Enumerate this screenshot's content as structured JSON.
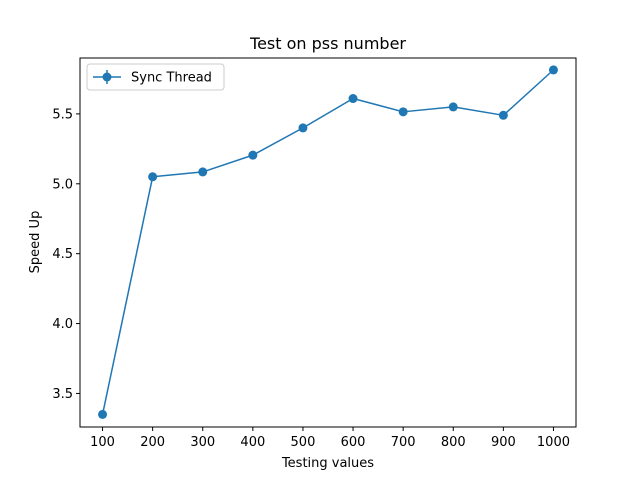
{
  "chart_data": {
    "type": "line",
    "title": "Test on pss number",
    "xlabel": "Testing values",
    "ylabel": "Speed Up",
    "x": [
      100,
      200,
      300,
      400,
      500,
      600,
      700,
      800,
      900,
      1000
    ],
    "xticks": [
      "100",
      "200",
      "300",
      "400",
      "500",
      "600",
      "700",
      "800",
      "900",
      "1000"
    ],
    "yticks": [
      "3.5",
      "4.0",
      "4.5",
      "5.0",
      "5.5"
    ],
    "xlim": [
      55,
      1045
    ],
    "ylim": [
      3.26,
      5.9
    ],
    "grid": false,
    "legend": "top-left",
    "series": [
      {
        "name": "Sync Thread",
        "color": "#1f77b4",
        "marker": "circle",
        "values": [
          3.35,
          5.05,
          5.085,
          5.205,
          5.4,
          5.61,
          5.515,
          5.55,
          5.49,
          5.815
        ]
      }
    ]
  }
}
